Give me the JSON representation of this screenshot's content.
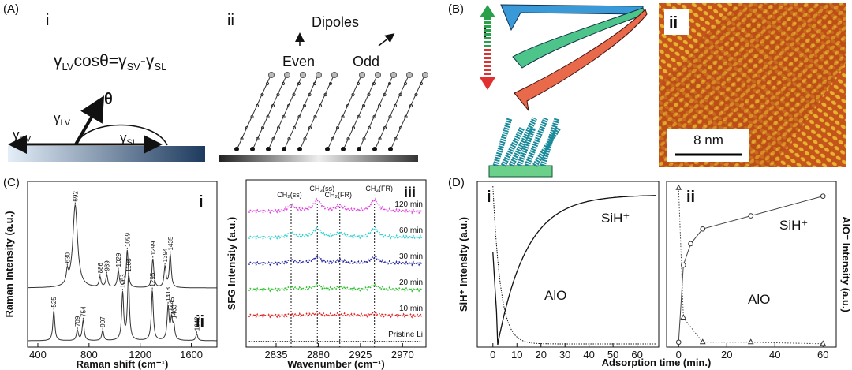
{
  "panel_a": {
    "label": "(A)",
    "i": {
      "label": "i",
      "equation": [
        "γ",
        "LV",
        "cosθ=γ",
        "SV",
        "-γ",
        "SL"
      ],
      "theta": "θ",
      "gamma_lv": [
        "γ",
        "LV"
      ],
      "gamma_sv": [
        "γ",
        "SV"
      ],
      "gamma_sl": [
        "γ",
        "SL"
      ]
    },
    "ii": {
      "label": "ii",
      "title": "Dipoles",
      "even": "Even",
      "odd": "Odd"
    }
  },
  "panel_b": {
    "label": "(B)",
    "i": {
      "label": "i"
    },
    "ii": {
      "label": "ii",
      "scale_bar": "8 nm"
    }
  },
  "panel_c": {
    "label": "(C)",
    "raman": {
      "y_label": "Raman Intensity (a.u.)",
      "x_label": "Raman shift (cm⁻¹)",
      "xlim": [
        320,
        1800
      ],
      "xticks": [
        400,
        800,
        1200,
        1600
      ],
      "spectra": [
        {
          "name": "i",
          "peaks": [
            630,
            692,
            886,
            939,
            1029,
            1099,
            1299,
            1394,
            1435
          ],
          "heights": [
            0.15,
            1.0,
            0.12,
            0.15,
            0.2,
            0.45,
            0.35,
            0.25,
            0.4
          ]
        },
        {
          "name": "ii",
          "peaks": [
            525,
            709,
            754,
            907,
            1063,
            1108,
            1295,
            1418,
            1445,
            1463,
            1642
          ],
          "heights": [
            0.45,
            0.15,
            0.3,
            0.15,
            0.7,
            0.95,
            0.75,
            0.5,
            0.3,
            0.2,
            0.1
          ]
        }
      ]
    },
    "sfg": {
      "label": "iii",
      "y_label": "SFG Intensity (a.u.)",
      "x_label": "Wavenumber (cm⁻¹)",
      "xlim": [
        2803,
        2995
      ],
      "xticks": [
        2835,
        2880,
        2925,
        2970
      ],
      "modes": [
        "CH₂(ss)",
        "CH₃(ss)",
        "CH₂(FR)",
        "CH₃(FR)"
      ],
      "mode_positions": [
        2851,
        2879,
        2903,
        2940
      ],
      "series": [
        {
          "name": "120 min",
          "color": "#e040e0"
        },
        {
          "name": "60 min",
          "color": "#30d0d0"
        },
        {
          "name": "30 min",
          "color": "#2020a0"
        },
        {
          "name": "20 min",
          "color": "#30c030"
        },
        {
          "name": "10 min",
          "color": "#e02020"
        },
        {
          "name": "Pristine Li",
          "color": "#111111"
        }
      ]
    }
  },
  "panel_d": {
    "label": "(D)",
    "x_label": "Adsorption time (min.)",
    "i": {
      "label": "i",
      "y_label": "SiH⁺ Intensity (a.u.)",
      "xlim": [
        -6.5,
        69
      ],
      "xticks": [
        0,
        10,
        20,
        30,
        40,
        50,
        60
      ],
      "sih": "SiH⁺",
      "alo": "AlO⁻"
    },
    "ii": {
      "label": "ii",
      "y_label": "AlO⁻ Intensity (a.u.)",
      "xlim": [
        -5,
        65.5
      ],
      "xticks": [
        0,
        20,
        40,
        60
      ],
      "sih": "SiH⁺",
      "alo": "AlO⁻",
      "sih_points": {
        "x": [
          0,
          2,
          5,
          10,
          30,
          60
        ],
        "values": [
          0.03,
          0.5,
          0.63,
          0.72,
          0.8,
          0.92
        ]
      },
      "alo_points": {
        "x": [
          0,
          2,
          10,
          30,
          60
        ],
        "values": [
          0.97,
          0.18,
          0.03,
          0.03,
          0.02
        ]
      }
    }
  }
}
